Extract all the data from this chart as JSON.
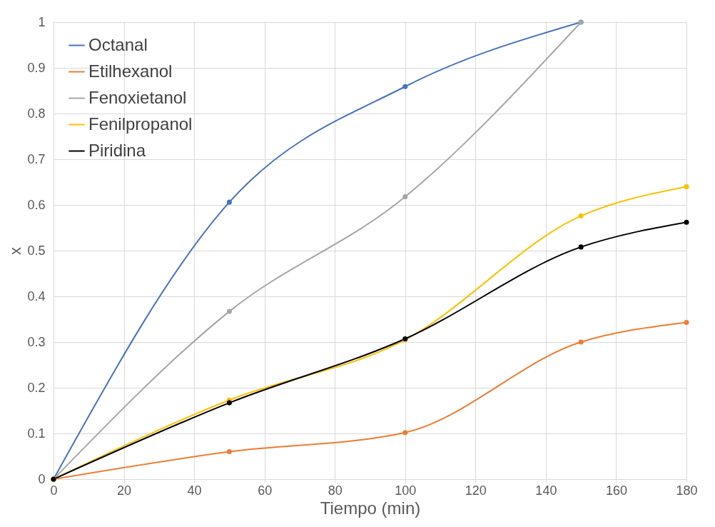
{
  "chart_data": {
    "type": "line",
    "xlabel": "Tiempo (min)",
    "ylabel": "x",
    "xlim": [
      0,
      180
    ],
    "xticks": [
      0,
      20,
      40,
      60,
      80,
      100,
      120,
      140,
      160,
      180
    ],
    "ylim": [
      0,
      1
    ],
    "yticks": [
      0,
      0.1,
      0.2,
      0.3,
      0.4,
      0.5,
      0.6,
      0.7,
      0.8,
      0.9,
      1
    ],
    "grid": true,
    "legend": "top left",
    "marker": "circle",
    "series": [
      {
        "name": "Octanal",
        "color": "#4472c4",
        "x": [
          0,
          50,
          100,
          150
        ],
        "values": [
          0,
          0.606,
          0.859,
          1
        ]
      },
      {
        "name": "Etilhexanol",
        "color": "#ed7d31",
        "x": [
          0,
          50,
          100,
          150,
          180
        ],
        "values": [
          0,
          0.06,
          0.102,
          0.3,
          0.343
        ]
      },
      {
        "name": "Fenoxietanol",
        "color": "#a5a5a5",
        "x": [
          0,
          50,
          100,
          150
        ],
        "values": [
          0,
          0.367,
          0.618,
          1
        ]
      },
      {
        "name": "Fenilpropanol",
        "color": "#ffc000",
        "x": [
          0,
          50,
          100,
          150,
          180
        ],
        "values": [
          0,
          0.173,
          0.305,
          0.576,
          0.64
        ]
      },
      {
        "name": "Piridina",
        "color": "#000000",
        "x": [
          0,
          50,
          100,
          150,
          180
        ],
        "values": [
          0,
          0.167,
          0.307,
          0.508,
          0.562
        ]
      }
    ]
  }
}
